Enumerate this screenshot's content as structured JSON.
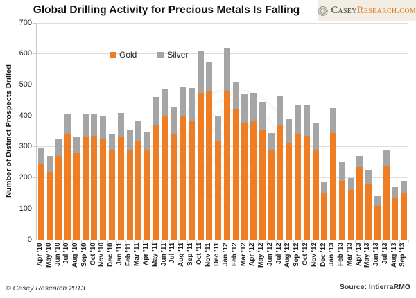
{
  "title": "Global Drilling Activity for Precious Metals Is Falling",
  "logo": {
    "brand_dark": "Casey",
    "brand_orange": "Research.com",
    "icon": "spiral-icon"
  },
  "footer": {
    "copyright": "© Casey Research 2013",
    "source": "Source: IntierraRMG"
  },
  "chart_data": {
    "type": "bar",
    "stacked": true,
    "title": "Global Drilling Activity for Precious Metals Is Falling",
    "xlabel": "",
    "ylabel": "Number of Distinct Prospects Drilled",
    "ylim": [
      0,
      700
    ],
    "yticks": [
      0,
      100,
      200,
      300,
      400,
      500,
      600,
      700
    ],
    "grid": true,
    "legend_position": "inside-top-left",
    "colors": {
      "gold": "#ee7d23",
      "silver": "#a5a5a5",
      "gridline": "#dcdcdc",
      "logo_background": "#f2eee3",
      "logo_orange": "#e4761f"
    },
    "categories": [
      "Apr '10",
      "May '10",
      "Jun '10",
      "Jul '10",
      "Aug '10",
      "Sep '10",
      "Oct '10",
      "Nov '10",
      "Dec '10",
      "Jan '11",
      "Feb '11",
      "Mar '11",
      "Apr '11",
      "May '11",
      "Jun '11",
      "Jul '11",
      "Aug '11",
      "Sep '11",
      "Oct '11",
      "Nov '11",
      "Dec '11",
      "Jan '12",
      "Feb '12",
      "Mar '12",
      "Apr '12",
      "May '12",
      "Jun '12",
      "Jul '12",
      "Aug '12",
      "Sep '12",
      "Oct '12",
      "Nov '12",
      "Dec '12",
      "Jan '13",
      "Feb '13",
      "Mar '13",
      "Apr '13",
      "May '13",
      "Jun '13",
      "Jul '13",
      "Aug '13",
      "Sep '13"
    ],
    "series": [
      {
        "name": "Gold",
        "color": "#ee7d23",
        "values": [
          245,
          220,
          270,
          340,
          280,
          330,
          335,
          325,
          290,
          330,
          290,
          320,
          290,
          370,
          400,
          340,
          400,
          385,
          475,
          480,
          320,
          480,
          420,
          375,
          385,
          355,
          290,
          370,
          310,
          340,
          335,
          290,
          150,
          345,
          190,
          160,
          235,
          180,
          110,
          240,
          135,
          150
        ]
      },
      {
        "name": "Silver",
        "color": "#a5a5a5",
        "values": [
          50,
          50,
          55,
          65,
          50,
          75,
          70,
          75,
          50,
          80,
          65,
          65,
          60,
          90,
          85,
          90,
          95,
          105,
          135,
          95,
          80,
          140,
          90,
          95,
          90,
          90,
          55,
          95,
          80,
          95,
          100,
          85,
          35,
          80,
          60,
          40,
          35,
          45,
          30,
          50,
          35,
          40
        ]
      }
    ]
  }
}
